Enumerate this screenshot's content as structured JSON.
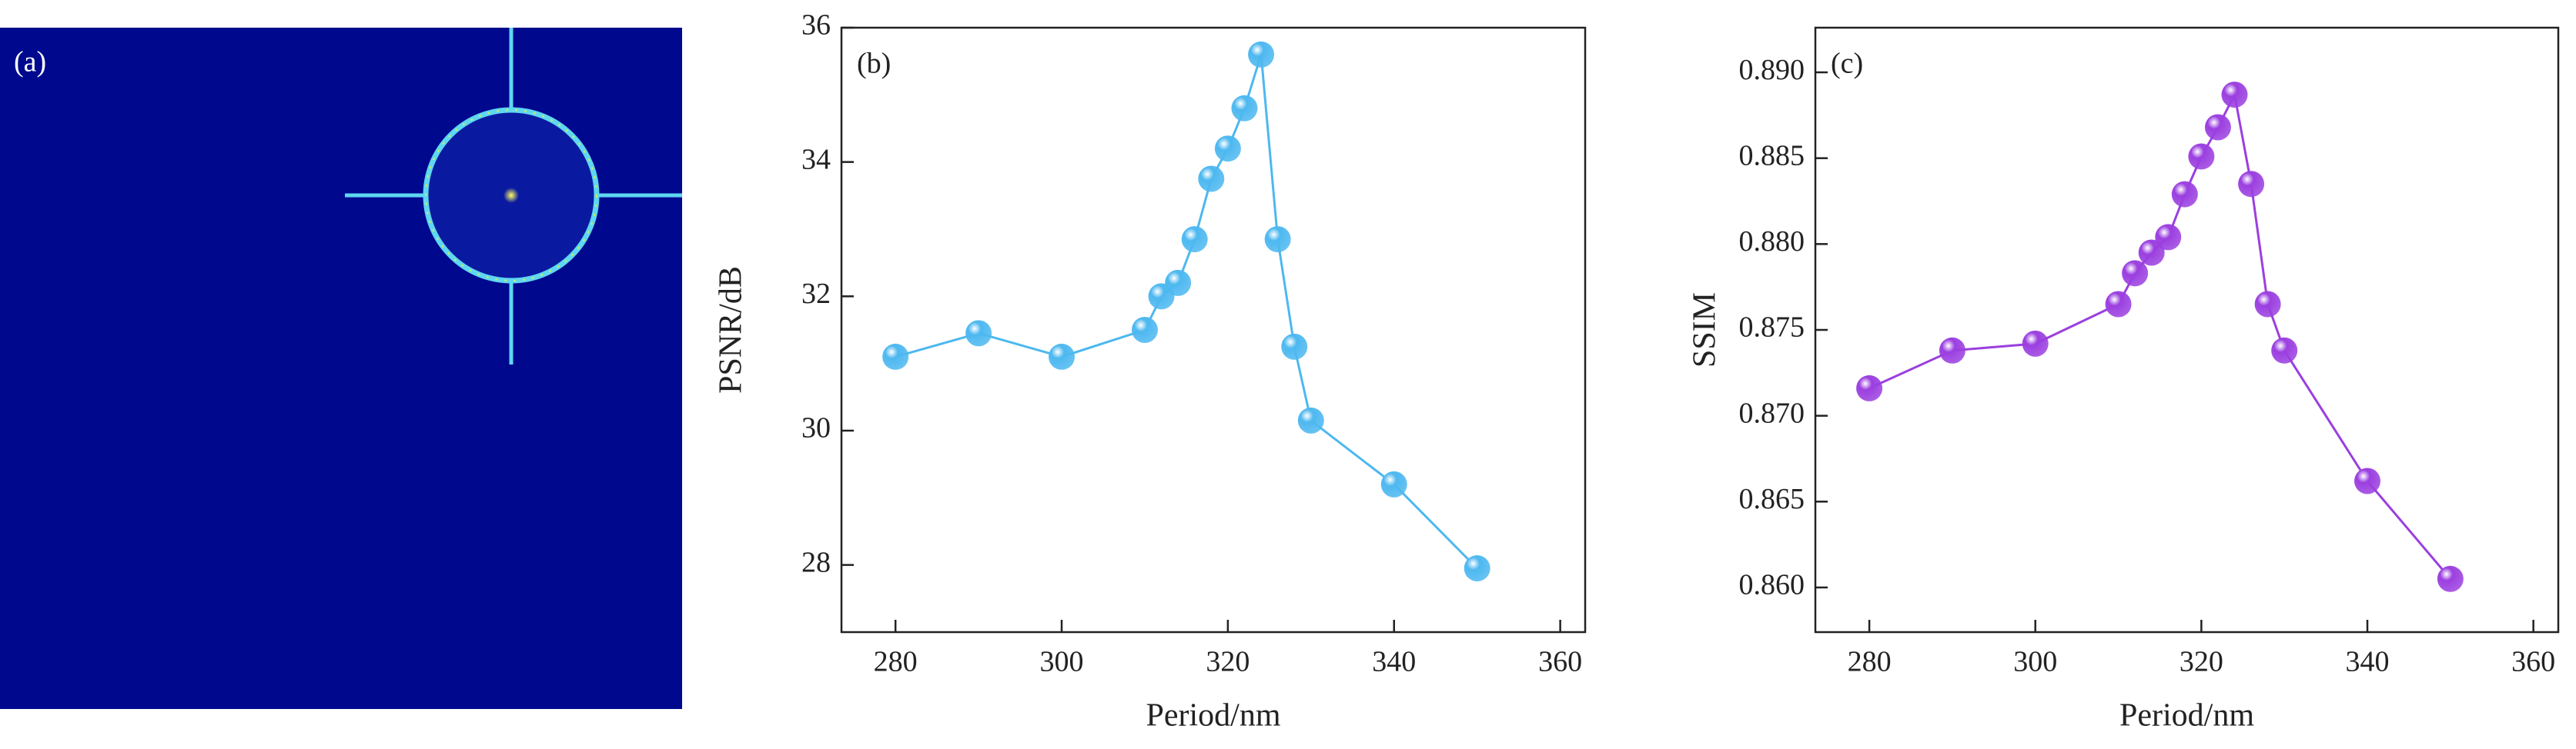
{
  "image_panel": {
    "label": "(a)"
  },
  "chart_data": [
    {
      "type": "line",
      "panel_label": "(b)",
      "x_label": "Period/nm",
      "y_label": "PSNR/dB",
      "x": [
        280,
        290,
        300,
        310,
        312,
        314,
        316,
        318,
        320,
        322,
        324,
        326,
        328,
        330,
        340,
        350
      ],
      "series": [
        {
          "name": "PSNR",
          "color": "#4db8f0",
          "values": [
            31.1,
            31.45,
            31.1,
            31.5,
            32.0,
            32.2,
            32.85,
            33.75,
            34.2,
            34.8,
            35.6,
            32.85,
            31.25,
            30.15,
            29.2,
            27.95
          ]
        }
      ],
      "xlim": [
        273.5,
        363
      ],
      "xticks": [
        280,
        300,
        320,
        340,
        360
      ],
      "ylim": [
        27,
        36
      ],
      "yticks": [
        28,
        30,
        32,
        34,
        36
      ]
    },
    {
      "type": "line",
      "panel_label": "(c)",
      "x_label": "Period/nm",
      "y_label": "SSIM",
      "x": [
        280,
        290,
        300,
        310,
        312,
        314,
        316,
        318,
        320,
        322,
        324,
        326,
        328,
        330,
        340,
        350
      ],
      "series": [
        {
          "name": "SSIM",
          "color": "#9b3fe0",
          "values": [
            0.8716,
            0.8738,
            0.8742,
            0.8765,
            0.8783,
            0.8795,
            0.8804,
            0.8829,
            0.8851,
            0.8868,
            0.8887,
            0.8835,
            0.8765,
            0.8738,
            0.8662,
            0.8605
          ]
        }
      ],
      "xlim": [
        273.5,
        363
      ],
      "xticks": [
        280,
        300,
        320,
        340,
        360
      ],
      "ylim": [
        0.8574,
        0.8926
      ],
      "yticks": [
        {
          "value": 0.86,
          "label": "0.860"
        },
        {
          "value": 0.865,
          "label": "0.865"
        },
        {
          "value": 0.87,
          "label": "0.870"
        },
        {
          "value": 0.875,
          "label": "0.875"
        },
        {
          "value": 0.88,
          "label": "0.880"
        },
        {
          "value": 0.885,
          "label": "0.885"
        },
        {
          "value": 0.89,
          "label": "0.890"
        }
      ]
    }
  ]
}
